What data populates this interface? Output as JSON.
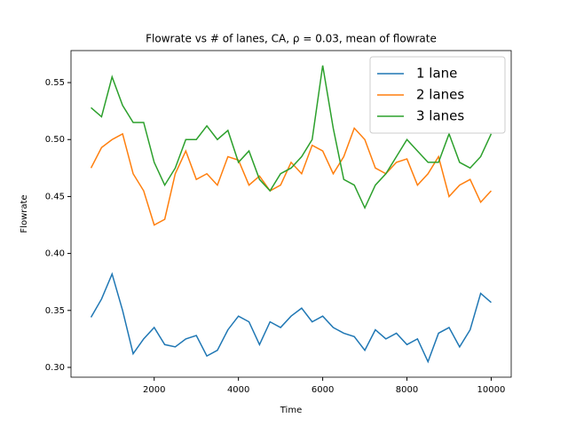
{
  "chart_data": {
    "type": "line",
    "title": "Flowrate vs # of lanes, CA, ρ = 0.03, mean of flowrate",
    "x_label": "Time",
    "y_label": "Flowrate",
    "x": [
      500,
      750,
      1000,
      1250,
      1500,
      1750,
      2000,
      2250,
      2500,
      2750,
      3000,
      3250,
      3500,
      3750,
      4000,
      4250,
      4500,
      4750,
      5000,
      5250,
      5500,
      5750,
      6000,
      6250,
      6500,
      6750,
      7000,
      7250,
      7500,
      7750,
      8000,
      8250,
      8500,
      8750,
      9000,
      9250,
      9500,
      9750,
      10000
    ],
    "series": [
      {
        "name": "1 lane",
        "color": "#1f77b4",
        "values": [
          0.344,
          0.36,
          0.382,
          0.35,
          0.312,
          0.325,
          0.335,
          0.32,
          0.318,
          0.325,
          0.328,
          0.31,
          0.315,
          0.333,
          0.345,
          0.34,
          0.32,
          0.34,
          0.335,
          0.345,
          0.352,
          0.34,
          0.345,
          0.335,
          0.33,
          0.327,
          0.315,
          0.333,
          0.325,
          0.33,
          0.32,
          0.325,
          0.305,
          0.33,
          0.335,
          0.318,
          0.333,
          0.365,
          0.357
        ]
      },
      {
        "name": "2 lanes",
        "color": "#ff7f0e",
        "values": [
          0.475,
          0.493,
          0.5,
          0.505,
          0.47,
          0.455,
          0.425,
          0.43,
          0.47,
          0.49,
          0.465,
          0.47,
          0.46,
          0.485,
          0.482,
          0.46,
          0.468,
          0.455,
          0.46,
          0.48,
          0.47,
          0.495,
          0.49,
          0.47,
          0.485,
          0.51,
          0.5,
          0.475,
          0.47,
          0.48,
          0.483,
          0.46,
          0.47,
          0.485,
          0.45,
          0.46,
          0.465,
          0.445,
          0.455
        ]
      },
      {
        "name": "3 lanes",
        "color": "#2ca02c",
        "values": [
          0.528,
          0.52,
          0.555,
          0.53,
          0.515,
          0.515,
          0.48,
          0.46,
          0.475,
          0.5,
          0.5,
          0.512,
          0.5,
          0.508,
          0.48,
          0.49,
          0.465,
          0.455,
          0.47,
          0.475,
          0.485,
          0.5,
          0.565,
          0.51,
          0.465,
          0.46,
          0.44,
          0.46,
          0.47,
          0.485,
          0.5,
          0.49,
          0.48,
          0.48,
          0.505,
          0.48,
          0.475,
          0.485,
          0.505
        ]
      }
    ],
    "xlim": [
      25,
      10475
    ],
    "ylim": [
      0.2914,
      0.5781
    ],
    "xticks": [
      2000,
      4000,
      6000,
      8000,
      10000
    ],
    "yticks": [
      {
        "value": 0.3,
        "label": "0.30"
      },
      {
        "value": 0.35,
        "label": "0.35"
      },
      {
        "value": 0.4,
        "label": "0.40"
      },
      {
        "value": 0.45,
        "label": "0.45"
      },
      {
        "value": 0.5,
        "label": "0.50"
      },
      {
        "value": 0.55,
        "label": "0.55"
      }
    ],
    "legend": "upper right"
  }
}
